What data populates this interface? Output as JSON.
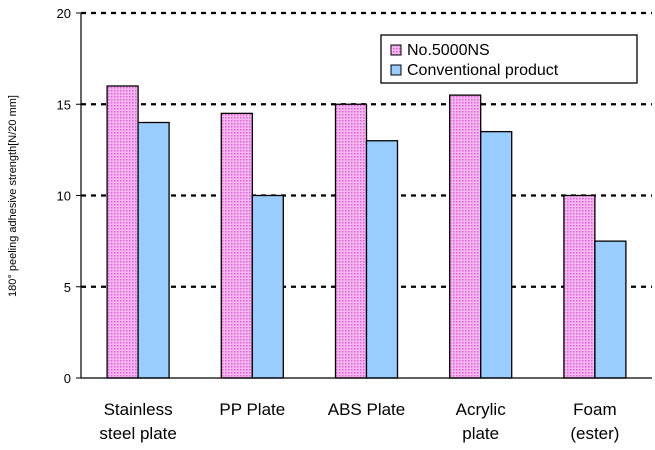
{
  "chart_data": {
    "type": "bar",
    "categories": [
      [
        "Stainless",
        "steel plate"
      ],
      [
        "PP Plate"
      ],
      [
        "ABS Plate"
      ],
      [
        "Acrylic",
        "plate"
      ],
      [
        "Foam",
        "(ester)"
      ]
    ],
    "series": [
      {
        "name": "No.5000NS",
        "values": [
          16,
          14.5,
          15,
          15.5,
          10
        ],
        "color": "#f08cf0",
        "pattern": "dotted-pink"
      },
      {
        "name": "Conventional product",
        "values": [
          14,
          10,
          13,
          13.5,
          7.5
        ],
        "color": "#99ccff",
        "pattern": "solid"
      }
    ],
    "title": "",
    "xlabel": "",
    "ylabel": "180° peeling adhesive strength[N/20 mm]",
    "ylim": [
      0,
      20
    ],
    "yticks": [
      0,
      5,
      10,
      15,
      20
    ],
    "grid": "horizontal-dashed",
    "legend_position": "top-right"
  }
}
